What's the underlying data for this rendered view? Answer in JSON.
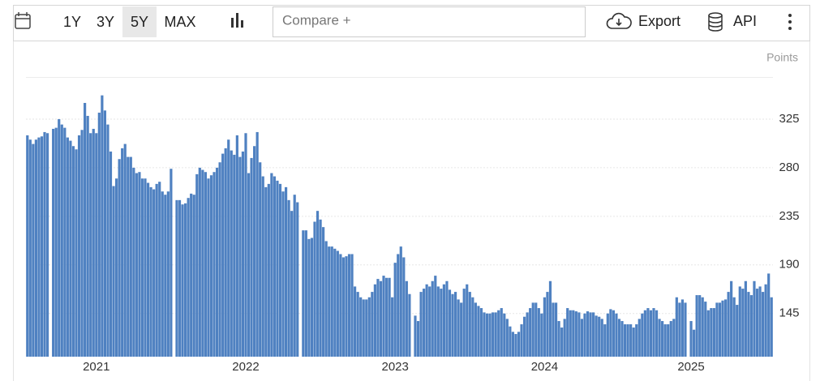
{
  "toolbar": {
    "ranges": [
      "1Y",
      "3Y",
      "5Y",
      "MAX"
    ],
    "compare": "Compare +",
    "export": "Export",
    "api": "API"
  },
  "chart_data": {
    "type": "bar",
    "y_axis_label": "Points",
    "color": "#4f81c1",
    "ylim": [
      105,
      364
    ],
    "yticks": [
      145,
      190,
      235,
      280,
      325
    ],
    "grid": true,
    "y_axis_side": "right",
    "categories": [
      null,
      null,
      null,
      null,
      null,
      null,
      null,
      null,
      null,
      null,
      null,
      null,
      null,
      null,
      null,
      null,
      null,
      null,
      null,
      null,
      null,
      null,
      null,
      null,
      "2021",
      null,
      null,
      null,
      null,
      null,
      null,
      null,
      null,
      null,
      null,
      null,
      null,
      null,
      null,
      null,
      null,
      null,
      null,
      null,
      null,
      null,
      null,
      null,
      null,
      null,
      null,
      null,
      null,
      null,
      null,
      null,
      null,
      null,
      null,
      null,
      null,
      null,
      null,
      null,
      null,
      null,
      null,
      null,
      null,
      null,
      null,
      null,
      null,
      null,
      null,
      null,
      "2022",
      null,
      null,
      null,
      null,
      null,
      null,
      null,
      null,
      null,
      null,
      null,
      null,
      null,
      null,
      null,
      null,
      null,
      null,
      null,
      null,
      null,
      null,
      null,
      null,
      null,
      null,
      null,
      null,
      null,
      null,
      null,
      null,
      null,
      null,
      null,
      null,
      null,
      null,
      null,
      null,
      null,
      null,
      null,
      null,
      null,
      null,
      null,
      null,
      null,
      null,
      null,
      "2023",
      null,
      null,
      null,
      null,
      null,
      null,
      null,
      null,
      null,
      null,
      null,
      null,
      null,
      null,
      null,
      null,
      null,
      null,
      null,
      null,
      null,
      null,
      null,
      null,
      null,
      null,
      null,
      null,
      null,
      null,
      null,
      null,
      null,
      null,
      null,
      null,
      null,
      null,
      null,
      null,
      null,
      null,
      null,
      null,
      null,
      null,
      null,
      null,
      null,
      null,
      null,
      "2024",
      null,
      null,
      null,
      null,
      null,
      null,
      null,
      null,
      null,
      null,
      null,
      null,
      null,
      null,
      null,
      null,
      null,
      null,
      null,
      null,
      null,
      null,
      null,
      null,
      null,
      null,
      null,
      null,
      null,
      null,
      null,
      null,
      null,
      null,
      null,
      null,
      null,
      null,
      null,
      null,
      null,
      null,
      null,
      null,
      null,
      null,
      null,
      null,
      null,
      null,
      "2025",
      null,
      null,
      null,
      null,
      null,
      null,
      null,
      null,
      null,
      null,
      null,
      null,
      null,
      null,
      null,
      null,
      null,
      null,
      null,
      null,
      null,
      null,
      null,
      null,
      null,
      null,
      null,
      null
    ],
    "values": [
      310,
      306,
      302,
      306,
      308,
      309,
      313,
      312,
      null,
      316,
      317,
      325,
      320,
      317,
      308,
      305,
      300,
      297,
      310,
      315,
      340,
      328,
      312,
      316,
      312,
      331,
      347,
      333,
      320,
      295,
      263,
      270,
      288,
      298,
      302,
      290,
      290,
      280,
      275,
      276,
      270,
      270,
      266,
      262,
      260,
      265,
      267,
      258,
      255,
      258,
      279,
      null,
      250,
      250,
      246,
      247,
      252,
      256,
      255,
      274,
      280,
      278,
      276,
      270,
      273,
      276,
      280,
      285,
      293,
      298,
      306,
      296,
      292,
      310,
      290,
      295,
      312,
      275,
      289,
      300,
      313,
      285,
      272,
      262,
      265,
      275,
      272,
      268,
      265,
      258,
      262,
      250,
      240,
      255,
      248,
      null,
      222,
      222,
      214,
      215,
      230,
      240,
      232,
      225,
      212,
      207,
      207,
      205,
      203,
      200,
      197,
      198,
      200,
      200,
      170,
      165,
      160,
      158,
      158,
      160,
      165,
      172,
      177,
      175,
      180,
      178,
      178,
      160,
      192,
      200,
      207,
      197,
      175,
      163,
      null,
      143,
      138,
      165,
      168,
      172,
      170,
      175,
      180,
      170,
      168,
      172,
      175,
      167,
      163,
      165,
      158,
      155,
      168,
      172,
      165,
      160,
      155,
      152,
      150,
      146,
      145,
      145,
      146,
      146,
      148,
      150,
      145,
      140,
      133,
      128,
      126,
      128,
      135,
      142,
      146,
      150,
      155,
      155,
      150,
      145,
      160,
      165,
      175,
      155,
      155,
      138,
      132,
      140,
      150,
      148,
      148,
      147,
      146,
      140,
      145,
      147,
      146,
      146,
      143,
      142,
      140,
      135,
      145,
      149,
      148,
      145,
      140,
      138,
      135,
      135,
      135,
      132,
      135,
      140,
      145,
      148,
      150,
      148,
      150,
      148,
      140,
      138,
      135,
      135,
      138,
      140,
      160,
      155,
      158,
      155,
      null,
      138,
      130,
      162,
      162,
      160,
      156,
      148,
      150,
      150,
      155,
      155,
      157,
      158,
      165,
      175,
      160,
      153,
      170,
      168,
      175,
      165,
      162,
      175,
      168,
      170,
      165,
      172,
      182,
      160
    ]
  }
}
